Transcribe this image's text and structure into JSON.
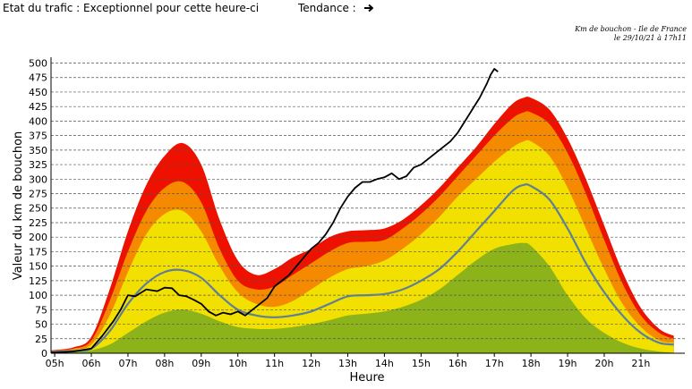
{
  "header": {
    "status_label": "Etat du trafic :",
    "status_value": "Exceptionnel pour cette heure-ci",
    "trend_label": "Tendance :",
    "trend_icon": "arrow-right-icon"
  },
  "note": {
    "line1": "Km de bouchon - Ile de France",
    "line2": "le 29/10/21 à 17h11"
  },
  "chart_data": {
    "type": "area",
    "ylabel": "Valeur du  km de bouchon",
    "xlabel": "Heure",
    "ylim": [
      0,
      510
    ],
    "xlim": [
      4.9,
      22.2
    ],
    "yticks": [
      0,
      25,
      50,
      75,
      100,
      125,
      150,
      175,
      200,
      225,
      250,
      275,
      300,
      325,
      350,
      375,
      400,
      425,
      450,
      475,
      500
    ],
    "xticks": [
      "05h",
      "06h",
      "07h",
      "08h",
      "09h",
      "10h",
      "11h",
      "12h",
      "13h",
      "14h",
      "15h",
      "16h",
      "17h",
      "18h",
      "19h",
      "20h",
      "21h"
    ],
    "grid": true,
    "colors": {
      "green": "#8db31a",
      "yellow": "#f2e000",
      "orange": "#f58a00",
      "red": "#ee1100",
      "average": "#5f7f99",
      "today": "#000000"
    },
    "x": [
      4.9,
      5.5,
      6.0,
      6.5,
      7.0,
      7.5,
      8.0,
      8.5,
      9.0,
      9.5,
      10.0,
      10.5,
      11.0,
      11.5,
      12.0,
      12.5,
      13.0,
      13.5,
      14.0,
      14.5,
      15.0,
      15.5,
      16.0,
      16.5,
      17.0,
      17.5,
      17.8,
      18.0,
      18.5,
      19.0,
      19.5,
      20.0,
      20.5,
      21.0,
      21.5,
      21.9
    ],
    "bands": [
      {
        "name": "green",
        "values": [
          0,
          2,
          5,
          15,
          35,
          55,
          70,
          75,
          68,
          55,
          45,
          42,
          42,
          45,
          50,
          57,
          65,
          68,
          72,
          80,
          92,
          110,
          135,
          160,
          180,
          188,
          190,
          185,
          150,
          100,
          60,
          35,
          18,
          8,
          3,
          1
        ]
      },
      {
        "name": "yellow",
        "values": [
          3,
          6,
          15,
          65,
          140,
          205,
          240,
          245,
          210,
          150,
          105,
          85,
          80,
          90,
          110,
          130,
          145,
          150,
          160,
          180,
          205,
          235,
          270,
          300,
          330,
          355,
          365,
          365,
          340,
          285,
          215,
          145,
          85,
          45,
          22,
          18
        ]
      },
      {
        "name": "orange",
        "values": [
          4,
          8,
          22,
          90,
          175,
          245,
          285,
          295,
          260,
          180,
          125,
          110,
          115,
          135,
          155,
          175,
          190,
          192,
          195,
          215,
          240,
          270,
          305,
          340,
          375,
          405,
          415,
          415,
          395,
          345,
          275,
          195,
          120,
          65,
          35,
          25
        ]
      },
      {
        "name": "red",
        "values": [
          5,
          10,
          28,
          110,
          210,
          290,
          340,
          362,
          325,
          230,
          160,
          135,
          145,
          165,
          180,
          200,
          210,
          212,
          215,
          230,
          255,
          285,
          320,
          355,
          395,
          430,
          440,
          440,
          420,
          370,
          300,
          220,
          140,
          78,
          42,
          30
        ]
      }
    ],
    "series": [
      {
        "name": "average",
        "x": [
          4.9,
          5.5,
          6.0,
          6.5,
          7.0,
          7.5,
          8.0,
          8.5,
          9.0,
          9.5,
          10.0,
          10.5,
          11.0,
          11.5,
          12.0,
          12.5,
          13.0,
          13.5,
          14.0,
          14.5,
          15.0,
          15.5,
          16.0,
          16.5,
          17.0,
          17.5,
          17.8,
          18.0,
          18.5,
          19.0,
          19.5,
          20.0,
          20.5,
          21.0,
          21.5,
          21.9
        ],
        "values": [
          2,
          4,
          8,
          38,
          85,
          120,
          140,
          143,
          130,
          100,
          75,
          65,
          62,
          65,
          72,
          85,
          98,
          100,
          102,
          110,
          125,
          145,
          175,
          210,
          245,
          280,
          290,
          288,
          265,
          215,
          155,
          105,
          65,
          35,
          18,
          15
        ]
      },
      {
        "name": "today",
        "x": [
          4.9,
          5.5,
          6.0,
          6.3,
          6.6,
          6.8,
          7.0,
          7.2,
          7.5,
          7.8,
          8.0,
          8.2,
          8.4,
          8.6,
          8.8,
          9.0,
          9.2,
          9.4,
          9.6,
          9.8,
          10.0,
          10.2,
          10.4,
          10.6,
          10.8,
          11.0,
          11.2,
          11.4,
          11.6,
          11.8,
          12.0,
          12.2,
          12.4,
          12.6,
          12.8,
          13.0,
          13.2,
          13.4,
          13.6,
          13.8,
          14.0,
          14.2,
          14.4,
          14.6,
          14.8,
          15.0,
          15.2,
          15.4,
          15.6,
          15.8,
          16.0,
          16.2,
          16.4,
          16.6,
          16.8,
          16.9,
          17.0,
          17.1
        ],
        "values": [
          1,
          3,
          8,
          30,
          55,
          75,
          100,
          98,
          110,
          107,
          113,
          112,
          100,
          98,
          92,
          85,
          72,
          65,
          70,
          67,
          72,
          65,
          75,
          85,
          95,
          115,
          125,
          135,
          150,
          165,
          180,
          190,
          205,
          225,
          250,
          270,
          285,
          295,
          295,
          300,
          303,
          310,
          300,
          305,
          320,
          325,
          335,
          345,
          355,
          365,
          380,
          400,
          420,
          440,
          465,
          480,
          490,
          485
        ]
      }
    ]
  }
}
